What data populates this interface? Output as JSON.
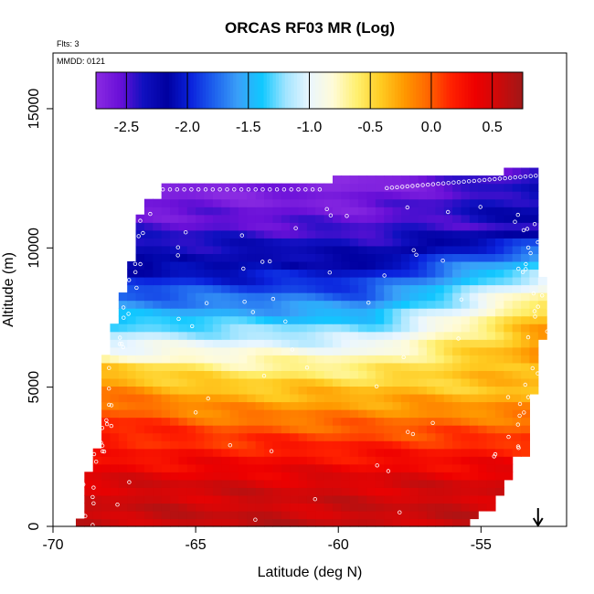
{
  "chart_data": {
    "type": "heatmap",
    "title": "ORCAS RF03 MR (Log)",
    "xlabel": "Latitude (deg N)",
    "ylabel": "Altitude (m)",
    "xlim": [
      -70,
      -52
    ],
    "ylim": [
      0,
      17000
    ],
    "x_ticks": [
      {
        "value": -70,
        "label": "-70"
      },
      {
        "value": -65,
        "label": "-65"
      },
      {
        "value": -60,
        "label": "-60"
      },
      {
        "value": -55,
        "label": "-55"
      }
    ],
    "y_ticks": [
      {
        "value": 0,
        "label": "0"
      },
      {
        "value": 5000,
        "label": "5000"
      },
      {
        "value": 10000,
        "label": "10000"
      },
      {
        "value": 15000,
        "label": "15000"
      }
    ],
    "colorbar": {
      "range": [
        -2.75,
        0.75
      ],
      "ticks": [
        {
          "value": -2.5,
          "label": "-2.5"
        },
        {
          "value": -2.0,
          "label": "-2.0"
        },
        {
          "value": -1.5,
          "label": "-1.5"
        },
        {
          "value": -1.0,
          "label": "-1.0"
        },
        {
          "value": -0.5,
          "label": "-0.5"
        },
        {
          "value": 0.0,
          "label": "0.0"
        },
        {
          "value": 0.5,
          "label": "0.5"
        }
      ],
      "colors": [
        "#8a2be2",
        "#6a10d8",
        "#1010c0",
        "#0000a0",
        "#0a22dd",
        "#1e62ee",
        "#3aa0f8",
        "#10c8ff",
        "#a0e4ff",
        "#eaf6ff",
        "#fffbd8",
        "#fff070",
        "#ffcc22",
        "#ff9900",
        "#ff6600",
        "#ff2000",
        "#ee0000",
        "#cc0a0a",
        "#a01818"
      ]
    },
    "annotations": {
      "flights": "Flts: 3",
      "date": "MMDD: 0121"
    },
    "arrow_marker": {
      "x": -53.0
    },
    "grid": false,
    "legend": "none",
    "colors": {
      "sample_points": "#ffffff",
      "frame": "#000000"
    }
  }
}
